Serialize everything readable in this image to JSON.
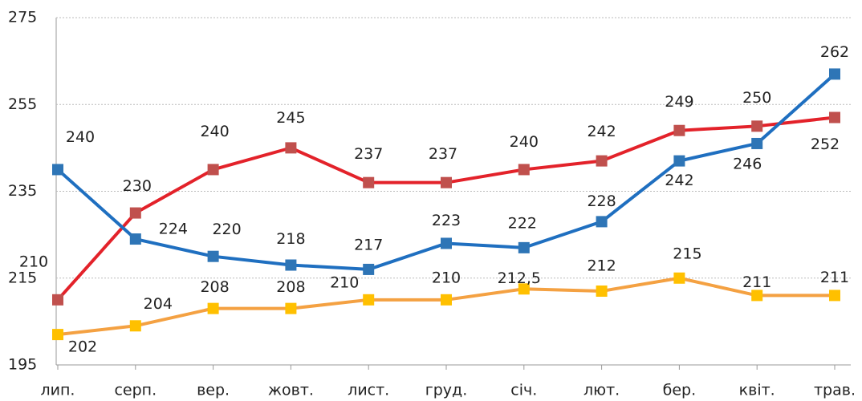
{
  "chart_data": {
    "type": "line",
    "categories": [
      "лип.",
      "серп.",
      "вер.",
      "жовт.",
      "лист.",
      "груд.",
      "січ.",
      "лют.",
      "бер.",
      "квіт.",
      "трав."
    ],
    "series": [
      {
        "color": "#e3222a",
        "marker_color": "#c0504d",
        "values": [
          210,
          230,
          240,
          245,
          237,
          237,
          240,
          242,
          249,
          250,
          252
        ]
      },
      {
        "color": "#1f6fc0",
        "marker_color": "#2e75b6",
        "values": [
          240,
          224,
          220,
          218,
          217,
          223,
          222,
          228,
          242,
          246,
          262
        ]
      },
      {
        "color": "#f4a142",
        "marker_color": "#ffc000",
        "values": [
          202,
          204,
          208,
          208,
          210,
          210,
          212.5,
          212,
          215,
          211,
          211
        ],
        "value_labels": [
          "202",
          "204",
          "208",
          "208",
          "210",
          "210",
          "212,5",
          "212",
          "215",
          "211",
          "211"
        ]
      }
    ],
    "ylim": [
      195,
      275
    ],
    "yticks": [
      195,
      215,
      235,
      255,
      275
    ],
    "grid": true
  }
}
